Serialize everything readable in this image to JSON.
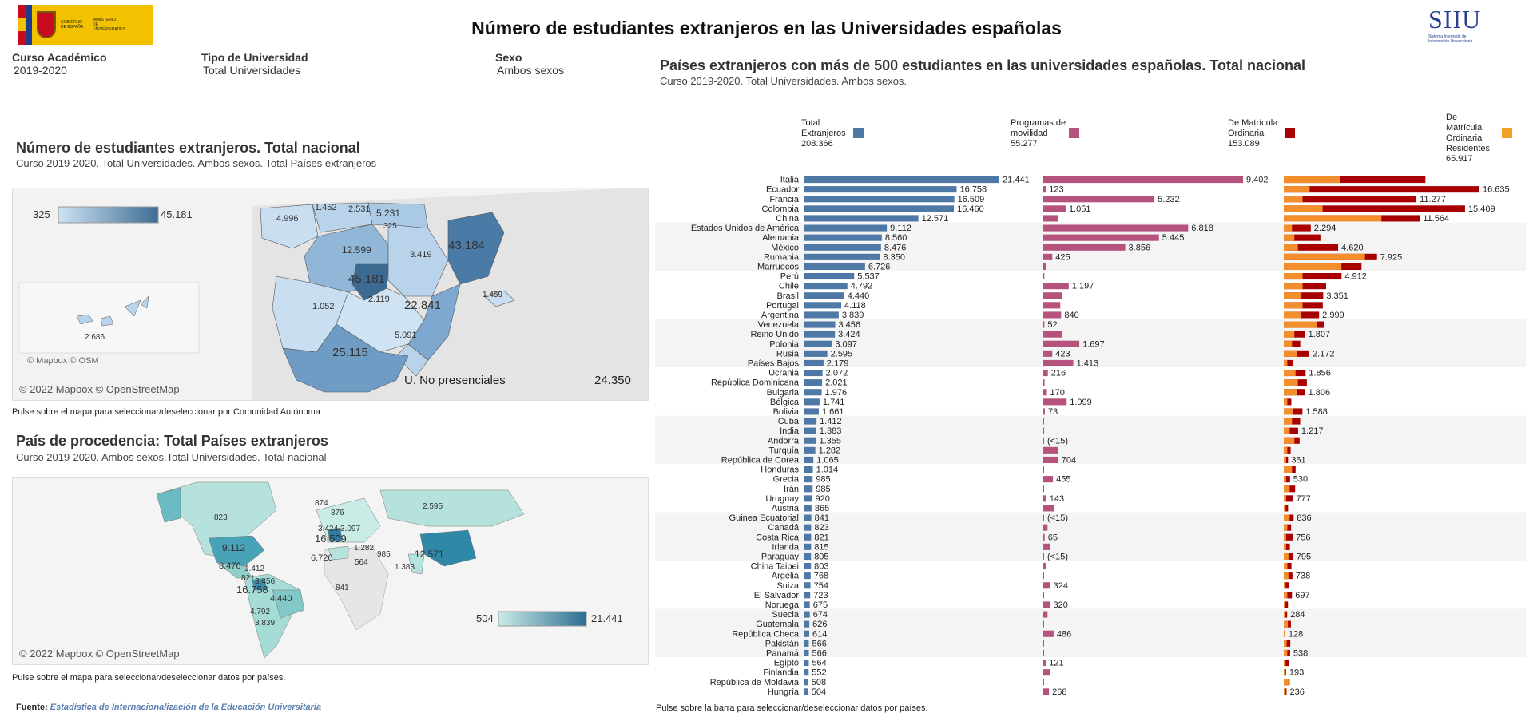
{
  "header": {
    "title": "Número de estudiantes extranjeros en las Universidades españolas",
    "logo_text": [
      "GOBIERNO",
      "DE ESPAÑA",
      "MINISTERIO",
      "DE UNIVERSIDADES"
    ],
    "siiu_logo": "SIIU",
    "siiu_caption": [
      "Sistema Integrado de",
      "Información Universitaria"
    ]
  },
  "filters": [
    {
      "label": "Curso Académico",
      "value": "2019-2020"
    },
    {
      "label": "Tipo de Universidad",
      "value": "Total Universidades"
    },
    {
      "label": "Sexo",
      "value": "Ambos sexos"
    }
  ],
  "map_spain": {
    "title": "Número de estudiantes extranjeros. Total nacional",
    "subtitle": "Curso 2019-2020. Total Universidades. Ambos sexos. Total Países extranjeros",
    "legend_min": "325",
    "legend_max": "45.181",
    "labels": [
      "4.996",
      "1.452",
      "2.531",
      "5.231",
      "325",
      "12.599",
      "3.419",
      "43.184",
      "45.181",
      "1.052",
      "2.119",
      "22.841",
      "1.459",
      "5.091",
      "25.115",
      "2.686"
    ],
    "inset_copyright": "© Mapbox © OSM",
    "non_presencial_label": "U. No presenciales",
    "non_presencial_value": "24.350",
    "copyright": "© 2022 Mapbox © OpenStreetMap",
    "note": "Pulse sobre el mapa para seleccionar/deseleccionar por Comunidad Autónoma"
  },
  "map_world": {
    "title": "País de procedencia: Total Países extranjeros",
    "subtitle": "Curso 2019-2020. Ambos sexos.Total Universidades. Total nacional",
    "legend_min": "504",
    "legend_max": "21.441",
    "labels": [
      "823",
      "874",
      "876",
      "2.595",
      "3.424",
      "3.097",
      "16.509",
      "9.112",
      "1.282",
      "6.726",
      "564",
      "985",
      "12.571",
      "1.383",
      "8.476",
      "1.412",
      "821",
      "3.456",
      "16.758",
      "841",
      "4.440",
      "4.792",
      "3.839"
    ],
    "copyright": "© 2022 Mapbox © OpenStreetMap",
    "note": "Pulse sobre el mapa para seleccionar/deseleccionar datos por países."
  },
  "source": {
    "label": "Fuente:",
    "link_text": "Estadística de Internacionalización de la Educación Universitaria"
  },
  "bars": {
    "title": "Países extranjeros con más de 500 estudiantes en las universidades españolas. Total nacional",
    "subtitle": "Curso 2019-2020. Total Universidades. Ambos sexos.",
    "note": "Pulse sobre la barra para seleccionar/deseleccionar datos por países.",
    "colors": {
      "total": "#4e79a7",
      "movilidad": "#b5527e",
      "ordinaria": "#a80000",
      "residentes": "#f28e2b"
    }
  },
  "chart_data": {
    "type": "bar",
    "legend": [
      {
        "name": "Total Extranjeros",
        "value": "208.366"
      },
      {
        "name": "Programas de movilidad",
        "value": "55.277"
      },
      {
        "name": "De Matrícula Ordinaria",
        "value": "153.089"
      },
      {
        "name": "De Matrícula Ordinaria Residentes",
        "value": "65.917"
      }
    ],
    "categories": [
      "Italia",
      "Ecuador",
      "Francia",
      "Colombia",
      "China",
      "Estados Unidos de América",
      "Alemania",
      "México",
      "Rumania",
      "Marruecos",
      "Perú",
      "Chile",
      "Brasil",
      "Portugal",
      "Argentina",
      "Venezuela",
      "Reino Unido",
      "Polonia",
      "Rusia",
      "Países Bajos",
      "Ucrania",
      "República Dominicana",
      "Bulgaria",
      "Bélgica",
      "Bolivia",
      "Cuba",
      "India",
      "Andorra",
      "Turquía",
      "República de Corea",
      "Honduras",
      "Grecia",
      "Irán",
      "Uruguay",
      "Austria",
      "Guinea Ecuatorial",
      "Canadá",
      "Costa Rica",
      "Irlanda",
      "Paraguay",
      "China Taipei",
      "Argelia",
      "Suiza",
      "El Salvador",
      "Noruega",
      "Suecia",
      "Guatemala",
      "República Checa",
      "Pakistán",
      "Panamá",
      "Egipto",
      "Finlandia",
      "República de Moldavia",
      "Hungría"
    ],
    "series": [
      {
        "name": "Total Extranjeros",
        "values": [
          21441,
          16758,
          16509,
          16460,
          12571,
          9112,
          8560,
          8476,
          8350,
          6726,
          5537,
          4792,
          4440,
          4118,
          3839,
          3456,
          3424,
          3097,
          2595,
          2179,
          2072,
          2021,
          1976,
          1741,
          1661,
          1412,
          1383,
          1355,
          1282,
          1065,
          1014,
          985,
          985,
          920,
          865,
          841,
          823,
          821,
          815,
          805,
          803,
          768,
          754,
          723,
          675,
          674,
          626,
          614,
          566,
          566,
          564,
          552,
          508,
          504
        ],
        "labels": [
          "21.441",
          "16.758",
          "16.509",
          "16.460",
          "12.571",
          "9.112",
          "8.560",
          "8.476",
          "8.350",
          "6.726",
          "5.537",
          "4.792",
          "4.440",
          "4.118",
          "3.839",
          "3.456",
          "3.424",
          "3.097",
          "2.595",
          "2.179",
          "2.072",
          "2.021",
          "1.976",
          "1.741",
          "1.661",
          "1.412",
          "1.383",
          "1.355",
          "1.282",
          "1.065",
          "1.014",
          "985",
          "985",
          "920",
          "865",
          "841",
          "823",
          "821",
          "815",
          "805",
          "803",
          "768",
          "754",
          "723",
          "675",
          "674",
          "626",
          "614",
          "566",
          "566",
          "564",
          "552",
          "508",
          "504"
        ]
      },
      {
        "name": "Programas de movilidad",
        "values": [
          9402,
          123,
          5232,
          1051,
          700,
          6818,
          5445,
          3856,
          425,
          120,
          50,
          1197,
          880,
          800,
          840,
          52,
          900,
          1697,
          423,
          1413,
          216,
          60,
          170,
          1099,
          73,
          20,
          40,
          10,
          700,
          704,
          10,
          455,
          20,
          143,
          500,
          10,
          200,
          65,
          300,
          10,
          150,
          20,
          324,
          10,
          320,
          200,
          20,
          486,
          10,
          10,
          121,
          320,
          10,
          268
        ],
        "labels": [
          "9.402",
          "123",
          "5.232",
          "1.051",
          "",
          "6.818",
          "5.445",
          "3.856",
          "425",
          "",
          "",
          "1.197",
          "",
          "",
          "840",
          "52",
          "",
          "1.697",
          "423",
          "1.413",
          "216",
          "",
          "170",
          "1.099",
          "73",
          "",
          "",
          "(<15)",
          "",
          "704",
          "",
          "455",
          "",
          "143",
          "",
          "(<15)",
          "",
          "65",
          "",
          "(<15)",
          "",
          "",
          "324",
          "",
          "320",
          "",
          "",
          "486",
          "",
          "",
          "121",
          "",
          "",
          "268"
        ]
      },
      {
        "name": "De Matrícula Ordinaria",
        "values": [
          12039,
          16635,
          11277,
          15409,
          11564,
          2294,
          3115,
          4620,
          7925,
          6606,
          4912,
          3595,
          3351,
          3318,
          2999,
          3404,
          1807,
          1400,
          2172,
          766,
          1856,
          1961,
          1806,
          642,
          1588,
          1392,
          1217,
          1345,
          582,
          361,
          1004,
          530,
          965,
          777,
          365,
          836,
          623,
          756,
          515,
          795,
          653,
          738,
          430,
          697,
          355,
          284,
          606,
          128,
          556,
          538,
          443,
          193,
          498,
          236
        ]
      },
      {
        "name": "De Matrícula Ordinaria Residentes",
        "values": [
          4800,
          2200,
          1600,
          3300,
          8300,
          700,
          900,
          1200,
          6900,
          4900,
          1600,
          1600,
          1500,
          1600,
          1500,
          2800,
          900,
          700,
          1100,
          300,
          1000,
          1200,
          1100,
          300,
          800,
          700,
          500,
          900,
          300,
          200,
          700,
          200,
          500,
          200,
          150,
          500,
          300,
          200,
          200,
          400,
          300,
          400,
          150,
          300,
          100,
          150,
          350,
          50,
          250,
          300,
          150,
          100,
          400,
          150
        ],
        "labels_from_ordinaria": true
      }
    ],
    "ordinaria_labels": [
      "",
      "16.635",
      "11.277",
      "15.409",
      "11.564",
      "2.294",
      "",
      "4.620",
      "7.925",
      "",
      "4.912",
      "",
      "3.351",
      "",
      "2.999",
      "",
      "1.807",
      "",
      "2.172",
      "",
      "1.856",
      "",
      "1.806",
      "",
      "1.588",
      "",
      "1.217",
      "",
      "",
      "361",
      "",
      "530",
      "",
      "777",
      "",
      "836",
      "",
      "756",
      "",
      "795",
      "",
      "738",
      "",
      "697",
      "",
      "284",
      "",
      "128",
      "",
      "538",
      "",
      "193",
      "",
      "236"
    ]
  }
}
